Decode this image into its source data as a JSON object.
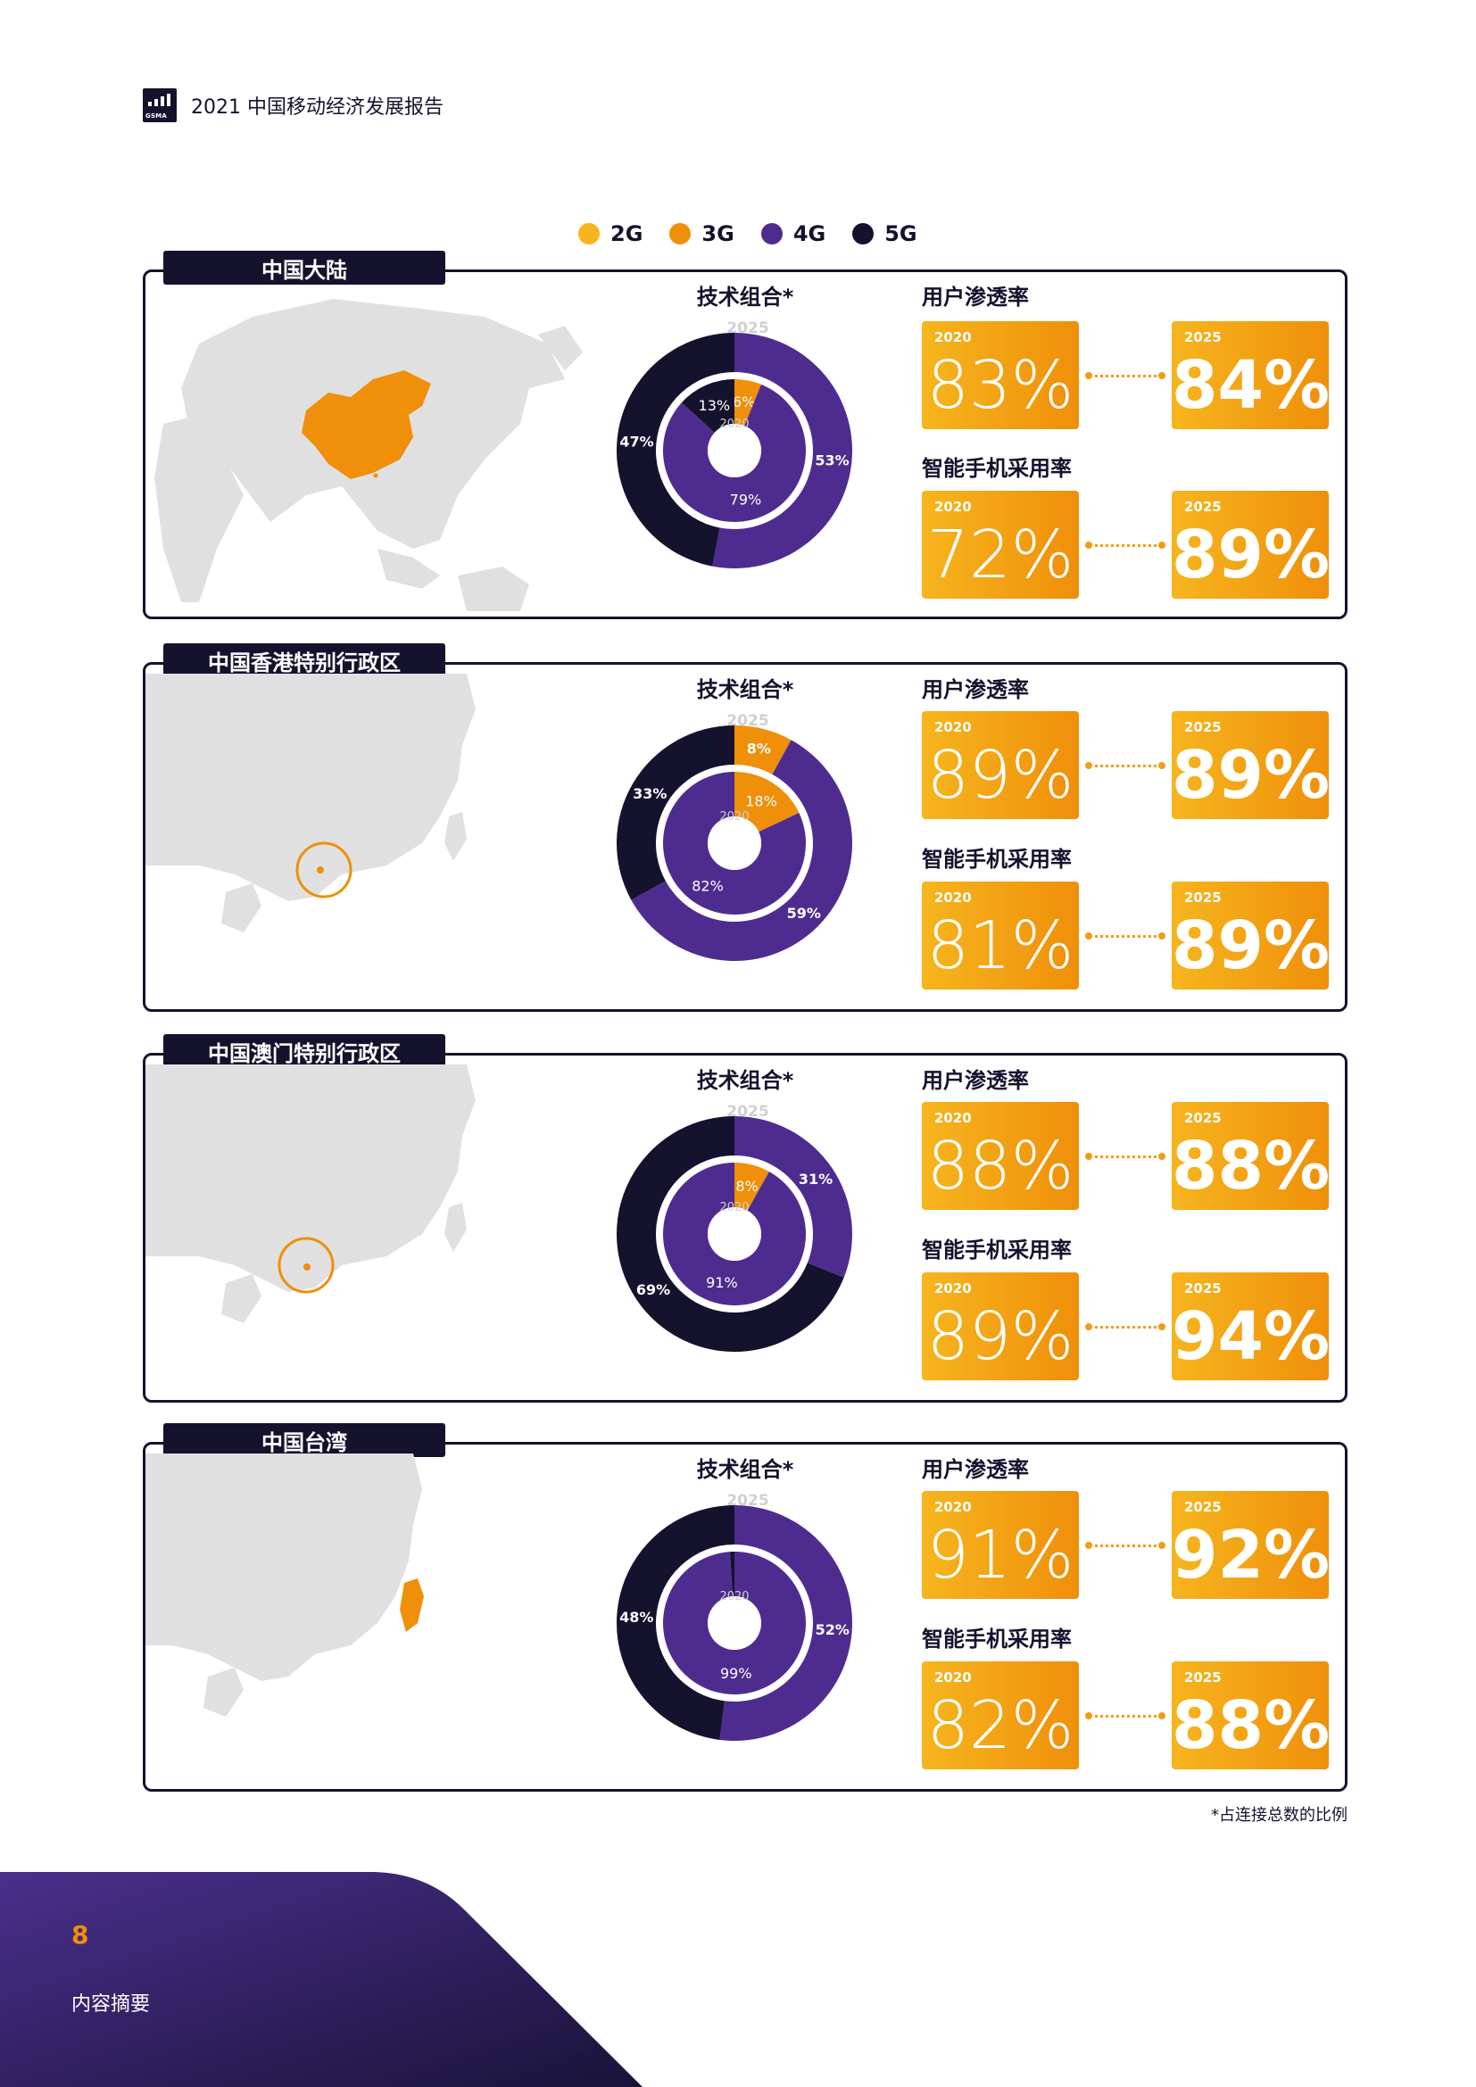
{
  "header": {
    "title": "2021 中国移动经济发展报告",
    "logo_text": "GSMA"
  },
  "legend": [
    {
      "label": "2G",
      "color": "#f6b51e"
    },
    {
      "label": "3G",
      "color": "#ef8f0a"
    },
    {
      "label": "4G",
      "color": "#4e2c8f"
    },
    {
      "label": "5G",
      "color": "#15122e"
    }
  ],
  "labels": {
    "chart_title": "技术组合*",
    "metric_a": "用户渗透率",
    "metric_b": "智能手机采用率",
    "outer_year": "2025",
    "inner_year": "2020"
  },
  "panels": [
    {
      "region": "中国大陆",
      "penetration": {
        "y2020_label": "2020",
        "v2020": "83%",
        "y2025_label": "2025",
        "v2025": "84%"
      },
      "smartphone": {
        "y2020_label": "2020",
        "v2020": "72%",
        "y2025_label": "2025",
        "v2025": "89%"
      }
    },
    {
      "region": "中国香港特别行政区",
      "penetration": {
        "y2020_label": "2020",
        "v2020": "89%",
        "y2025_label": "2025",
        "v2025": "89%"
      },
      "smartphone": {
        "y2020_label": "2020",
        "v2020": "81%",
        "y2025_label": "2025",
        "v2025": "89%"
      }
    },
    {
      "region": "中国澳门特别行政区",
      "penetration": {
        "y2020_label": "2020",
        "v2020": "88%",
        "y2025_label": "2025",
        "v2025": "88%"
      },
      "smartphone": {
        "y2020_label": "2020",
        "v2020": "89%",
        "y2025_label": "2025",
        "v2025": "94%"
      }
    },
    {
      "region": "中国台湾",
      "penetration": {
        "y2020_label": "2020",
        "v2020": "91%",
        "y2025_label": "2025",
        "v2025": "92%"
      },
      "smartphone": {
        "y2020_label": "2020",
        "v2020": "82%",
        "y2025_label": "2025",
        "v2025": "88%"
      }
    }
  ],
  "chart_data": [
    {
      "type": "pie",
      "title": "技术组合*",
      "region": "中国大陆",
      "series": [
        {
          "name": "2025",
          "slices": [
            {
              "label": "4G",
              "value": 53,
              "text": "53%"
            },
            {
              "label": "5G",
              "value": 47,
              "text": "47%"
            }
          ]
        },
        {
          "name": "2020",
          "slices": [
            {
              "label": "3G",
              "value": 6,
              "text": "6%"
            },
            {
              "label": "4G",
              "value": 79,
              "text": "79%"
            },
            {
              "label": "5G",
              "value": 13,
              "text": "13%"
            }
          ]
        }
      ]
    },
    {
      "type": "pie",
      "title": "技术组合*",
      "region": "中国香港特别行政区",
      "series": [
        {
          "name": "2025",
          "slices": [
            {
              "label": "3G",
              "value": 8,
              "text": "8%"
            },
            {
              "label": "4G",
              "value": 59,
              "text": "59%"
            },
            {
              "label": "5G",
              "value": 33,
              "text": "33%"
            }
          ]
        },
        {
          "name": "2020",
          "slices": [
            {
              "label": "3G",
              "value": 18,
              "text": "18%"
            },
            {
              "label": "4G",
              "value": 82,
              "text": "82%"
            }
          ]
        }
      ]
    },
    {
      "type": "pie",
      "title": "技术组合*",
      "region": "中国澳门特别行政区",
      "series": [
        {
          "name": "2025",
          "slices": [
            {
              "label": "4G",
              "value": 31,
              "text": "31%"
            },
            {
              "label": "5G",
              "value": 69,
              "text": "69%"
            }
          ]
        },
        {
          "name": "2020",
          "slices": [
            {
              "label": "3G",
              "value": 8,
              "text": "8%"
            },
            {
              "label": "4G",
              "value": 91,
              "text": "91%"
            }
          ]
        }
      ]
    },
    {
      "type": "pie",
      "title": "技术组合*",
      "region": "中国台湾",
      "series": [
        {
          "name": "2025",
          "slices": [
            {
              "label": "4G",
              "value": 52,
              "text": "52%"
            },
            {
              "label": "5G",
              "value": 48,
              "text": "48%"
            }
          ]
        },
        {
          "name": "2020",
          "slices": [
            {
              "label": "4G",
              "value": 99,
              "text": "99%"
            },
            {
              "label": "5G",
              "value": 1,
              "text": ""
            }
          ]
        }
      ]
    }
  ],
  "footnote": "*占连接总数的比例",
  "footer": {
    "page_number": "8",
    "section": "内容摘要"
  }
}
